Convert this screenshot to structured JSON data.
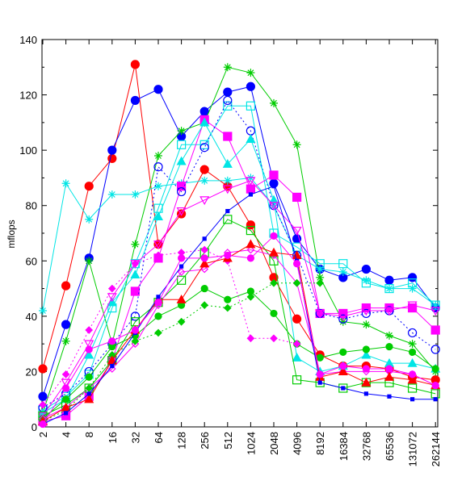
{
  "chart_data": {
    "type": "line",
    "title": "",
    "xlabel": "",
    "ylabel": "mflops",
    "ylim": [
      0,
      140
    ],
    "yticks": [
      0,
      20,
      40,
      60,
      80,
      100,
      120,
      140
    ],
    "categories": [
      "2",
      "4",
      "8",
      "16",
      "32",
      "64",
      "128",
      "256",
      "512",
      "1024",
      "2048",
      "4096",
      "8192",
      "16384",
      "32768",
      "65536",
      "131072",
      "262144"
    ],
    "grid": false,
    "legend": "none",
    "series": [
      {
        "color": "#ff0000",
        "dash": "solid",
        "marker": "circle",
        "filled": true,
        "size": 5,
        "values": [
          21,
          51,
          87,
          97,
          131,
          66,
          77,
          93,
          87,
          73,
          54,
          39,
          26,
          22,
          22,
          21,
          18,
          17
        ]
      },
      {
        "color": "#0000ff",
        "dash": "solid",
        "marker": "circle",
        "filled": true,
        "size": 5,
        "values": [
          11,
          37,
          61,
          100,
          118,
          122,
          105,
          114,
          121,
          123,
          88,
          68,
          57,
          54,
          57,
          53,
          54,
          43
        ]
      },
      {
        "color": "#00cc00",
        "dash": "solid",
        "marker": "star",
        "filled": false,
        "size": 5,
        "values": [
          5,
          31,
          60,
          30,
          66,
          98,
          107,
          110,
          130,
          128,
          117,
          102,
          54,
          38,
          37,
          33,
          30,
          20
        ]
      },
      {
        "color": "#00e5e5",
        "dash": "solid",
        "marker": "star",
        "filled": false,
        "size": 5,
        "values": [
          42,
          88,
          75,
          84,
          84,
          87,
          88,
          89,
          89,
          90,
          80,
          62,
          57,
          56,
          53,
          50,
          50,
          44
        ]
      },
      {
        "color": "#00e5e5",
        "dash": "solid",
        "marker": "square",
        "filled": false,
        "size": 5,
        "values": [
          6,
          11,
          19,
          43,
          59,
          79,
          102,
          102,
          116,
          116,
          70,
          65,
          59,
          59,
          52,
          50,
          52,
          44
        ]
      },
      {
        "color": "#ff00ff",
        "dash": "solid",
        "marker": "square",
        "filled": true,
        "size": 5,
        "values": [
          2,
          4,
          11,
          24,
          49,
          61,
          87,
          111,
          105,
          86,
          91,
          83,
          41,
          41,
          43,
          43,
          43,
          35
        ]
      },
      {
        "color": "#0000ff",
        "dash": "dotted",
        "marker": "circle",
        "filled": false,
        "size": 5,
        "values": [
          7,
          12,
          20,
          30,
          40,
          94,
          85,
          101,
          118,
          107,
          80,
          62,
          41,
          39,
          41,
          42,
          34,
          28
        ]
      },
      {
        "color": "#00e5e5",
        "dash": "solid",
        "marker": "triangle",
        "filled": true,
        "size": 5,
        "values": [
          5,
          10,
          26,
          45,
          55,
          76,
          96,
          110,
          95,
          104,
          82,
          25,
          20,
          22,
          26,
          23,
          23,
          21
        ]
      },
      {
        "color": "#ff00ff",
        "dash": "solid",
        "marker": "triangle-down",
        "filled": false,
        "size": 5,
        "values": [
          4,
          16,
          30,
          47,
          59,
          66,
          78,
          82,
          86,
          89,
          80,
          71,
          41,
          40,
          42,
          42,
          44,
          42
        ]
      },
      {
        "color": "#00cc00",
        "dash": "solid",
        "marker": "circle",
        "filled": true,
        "size": 4,
        "values": [
          3,
          10,
          18,
          29,
          33,
          40,
          44,
          50,
          46,
          49,
          41,
          30,
          25,
          27,
          28,
          29,
          27,
          21
        ]
      },
      {
        "color": "#00cc00",
        "dash": "solid",
        "marker": "square",
        "filled": false,
        "size": 5,
        "values": [
          4,
          8,
          14,
          24,
          38,
          45,
          53,
          63,
          75,
          71,
          60,
          17,
          16,
          14,
          16,
          16,
          14,
          12
        ]
      },
      {
        "color": "#ff00ff",
        "dash": "solid",
        "marker": "diamond",
        "filled": false,
        "size": 4,
        "values": [
          3,
          7,
          14,
          21,
          30,
          44,
          56,
          57,
          63,
          64,
          62,
          52,
          19,
          20,
          20,
          20,
          19,
          15
        ]
      },
      {
        "color": "#ff00ff",
        "dash": "dotted",
        "marker": "diamond",
        "filled": true,
        "size": 4,
        "values": [
          8,
          19,
          35,
          50,
          59,
          62,
          63,
          64,
          60,
          32,
          32,
          30,
          null,
          null,
          null,
          null,
          null,
          null
        ]
      },
      {
        "color": "#00cc00",
        "dash": "dotted",
        "marker": "diamond",
        "filled": true,
        "size": 4,
        "values": [
          2,
          6,
          14,
          26,
          31,
          34,
          38,
          44,
          43,
          47,
          52,
          52,
          52,
          null,
          null,
          null,
          null,
          null
        ]
      },
      {
        "color": "#ff0000",
        "dash": "solid",
        "marker": "triangle",
        "filled": true,
        "size": 5,
        "values": [
          2,
          7,
          10,
          24,
          35,
          46,
          46,
          59,
          61,
          66,
          63,
          62,
          18,
          20,
          16,
          18,
          17,
          15
        ]
      },
      {
        "color": "#0000ff",
        "dash": "solid",
        "marker": "square",
        "filled": true,
        "size": 2,
        "values": [
          1,
          5,
          12,
          22,
          34,
          47,
          58,
          68,
          78,
          84,
          87,
          60,
          16,
          14,
          12,
          11,
          10,
          10
        ]
      },
      {
        "color": "#ff00ff",
        "dash": "solid",
        "marker": "circle",
        "filled": true,
        "size": 4,
        "values": [
          1,
          14,
          28,
          31,
          35,
          45,
          61,
          61,
          62,
          61,
          69,
          59,
          19,
          22,
          21,
          21,
          19,
          15
        ]
      }
    ]
  }
}
